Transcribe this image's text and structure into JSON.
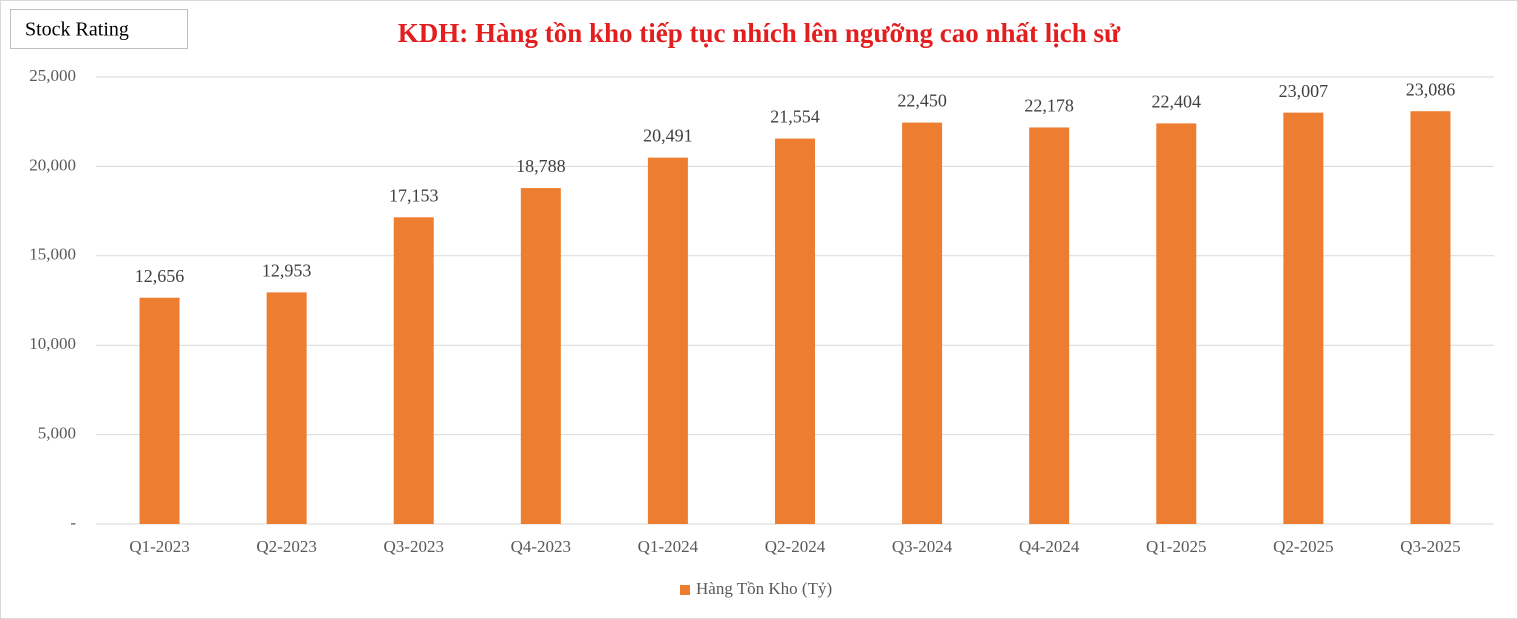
{
  "chart_data": {
    "type": "bar",
    "badge": "Stock Rating",
    "title": "KDH: Hàng tồn kho tiếp tục nhích lên ngưỡng cao nhất lịch sử",
    "categories": [
      "Q1-2023",
      "Q2-2023",
      "Q3-2023",
      "Q4-2023",
      "Q1-2024",
      "Q2-2024",
      "Q3-2024",
      "Q4-2024",
      "Q1-2025",
      "Q2-2025",
      "Q3-2025"
    ],
    "series": [
      {
        "name": "Hàng Tồn Kho (Tỷ)",
        "color": "#ed7d31",
        "values": [
          12656,
          12953,
          17153,
          18788,
          20491,
          21554,
          22450,
          22178,
          22404,
          23007,
          23086
        ],
        "value_labels": [
          "12,656",
          "12,953",
          "17,153",
          "18,788",
          "20,491",
          "21,554",
          "22,450",
          "22,178",
          "22,404",
          "23,007",
          "23,086"
        ]
      }
    ],
    "ylim": [
      0,
      25000
    ],
    "yticks": [
      {
        "value": 0,
        "label": "-"
      },
      {
        "value": 5000,
        "label": "5,000"
      },
      {
        "value": 10000,
        "label": "10,000"
      },
      {
        "value": 15000,
        "label": "15,000"
      },
      {
        "value": 20000,
        "label": "20,000"
      },
      {
        "value": 25000,
        "label": "25,000"
      }
    ],
    "grid": true,
    "legend": "bottom"
  }
}
